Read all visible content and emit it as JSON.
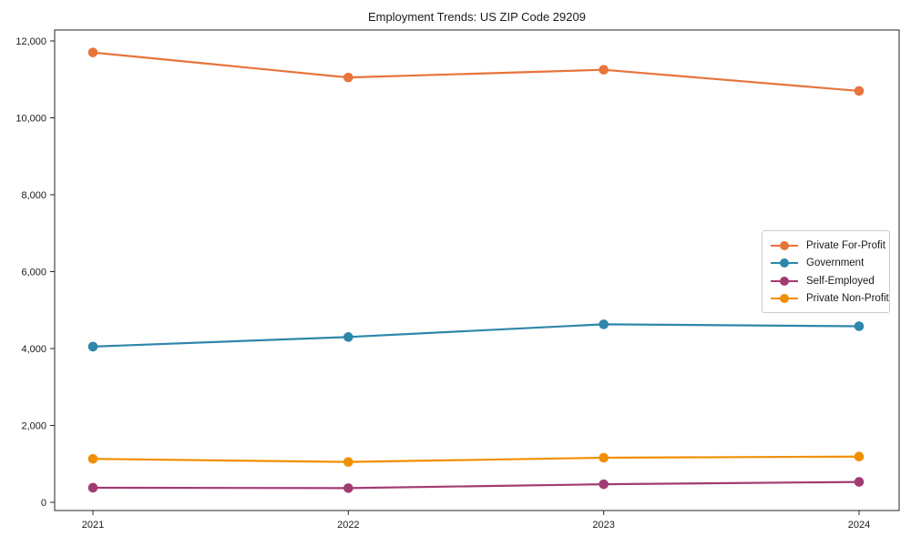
{
  "page": {
    "title": "Employment Trends: US ZIP Code 29209"
  },
  "chart_data": {
    "type": "line",
    "title": "Employment Trends: US ZIP Code 29209",
    "xlabel": "",
    "ylabel": "",
    "categories": [
      "2021",
      "2022",
      "2023",
      "2024"
    ],
    "series": [
      {
        "name": "Private For-Profit",
        "color": "#E8743B",
        "values": [
          11700,
          11050,
          11250,
          10700
        ]
      },
      {
        "name": "Government",
        "color": "#2E86AB",
        "values": [
          4050,
          4300,
          4630,
          4580
        ]
      },
      {
        "name": "Self-Employed",
        "color": "#A23B72",
        "values": [
          380,
          370,
          470,
          530
        ]
      },
      {
        "name": "Private Non-Profit",
        "color": "#F18F01",
        "values": [
          1130,
          1050,
          1160,
          1190
        ]
      }
    ],
    "ylim": [
      0,
      12000
    ],
    "ytick_step": 2000,
    "ytick_labels": [
      "0",
      "2,000",
      "4,000",
      "6,000",
      "8,000",
      "10,000",
      "12,000"
    ],
    "grid": false,
    "legend_position": "center-right",
    "marker": "circle"
  }
}
